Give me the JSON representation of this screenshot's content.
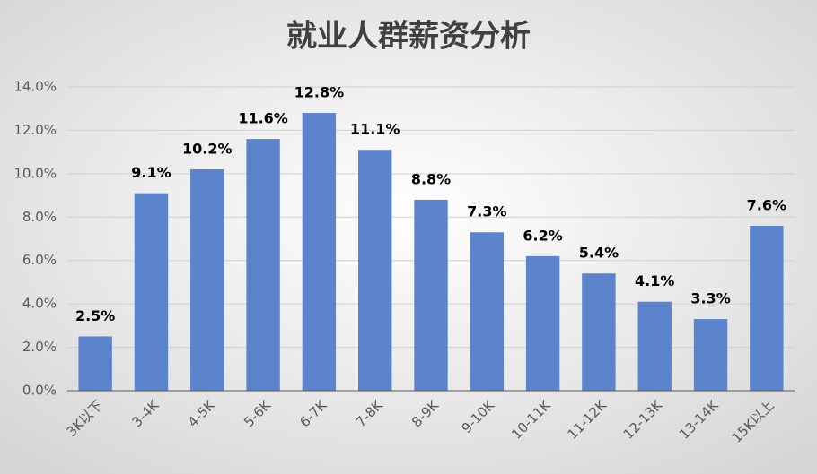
{
  "chart_data": {
    "type": "bar",
    "title": "就业人群薪资分析",
    "categories": [
      "3K以下",
      "3-4K",
      "4-5K",
      "5-6K",
      "6-7K",
      "7-8K",
      "8-9K",
      "9-10K",
      "10-11K",
      "11-12K",
      "12-13K",
      "13-14K",
      "15K以上"
    ],
    "values": [
      2.5,
      9.1,
      10.2,
      11.6,
      12.8,
      11.1,
      8.8,
      7.3,
      6.2,
      5.4,
      4.1,
      3.3,
      7.6
    ],
    "value_labels": [
      "2.5%",
      "9.1%",
      "10.2%",
      "11.6%",
      "12.8%",
      "11.1%",
      "8.8%",
      "7.3%",
      "6.2%",
      "5.4%",
      "4.1%",
      "3.3%",
      "7.6%"
    ],
    "color": "#5b84cc",
    "ylim": [
      0,
      14
    ],
    "yticks": [
      {
        "value": 0,
        "label": "0.0%"
      },
      {
        "value": 2,
        "label": "2.0%"
      },
      {
        "value": 4,
        "label": "4.0%"
      },
      {
        "value": 6,
        "label": "6.0%"
      },
      {
        "value": 8,
        "label": "8.0%"
      },
      {
        "value": 10,
        "label": "10.0%"
      },
      {
        "value": 12,
        "label": "12.0%"
      },
      {
        "value": 14,
        "label": "14.0%"
      }
    ],
    "grid": true
  }
}
